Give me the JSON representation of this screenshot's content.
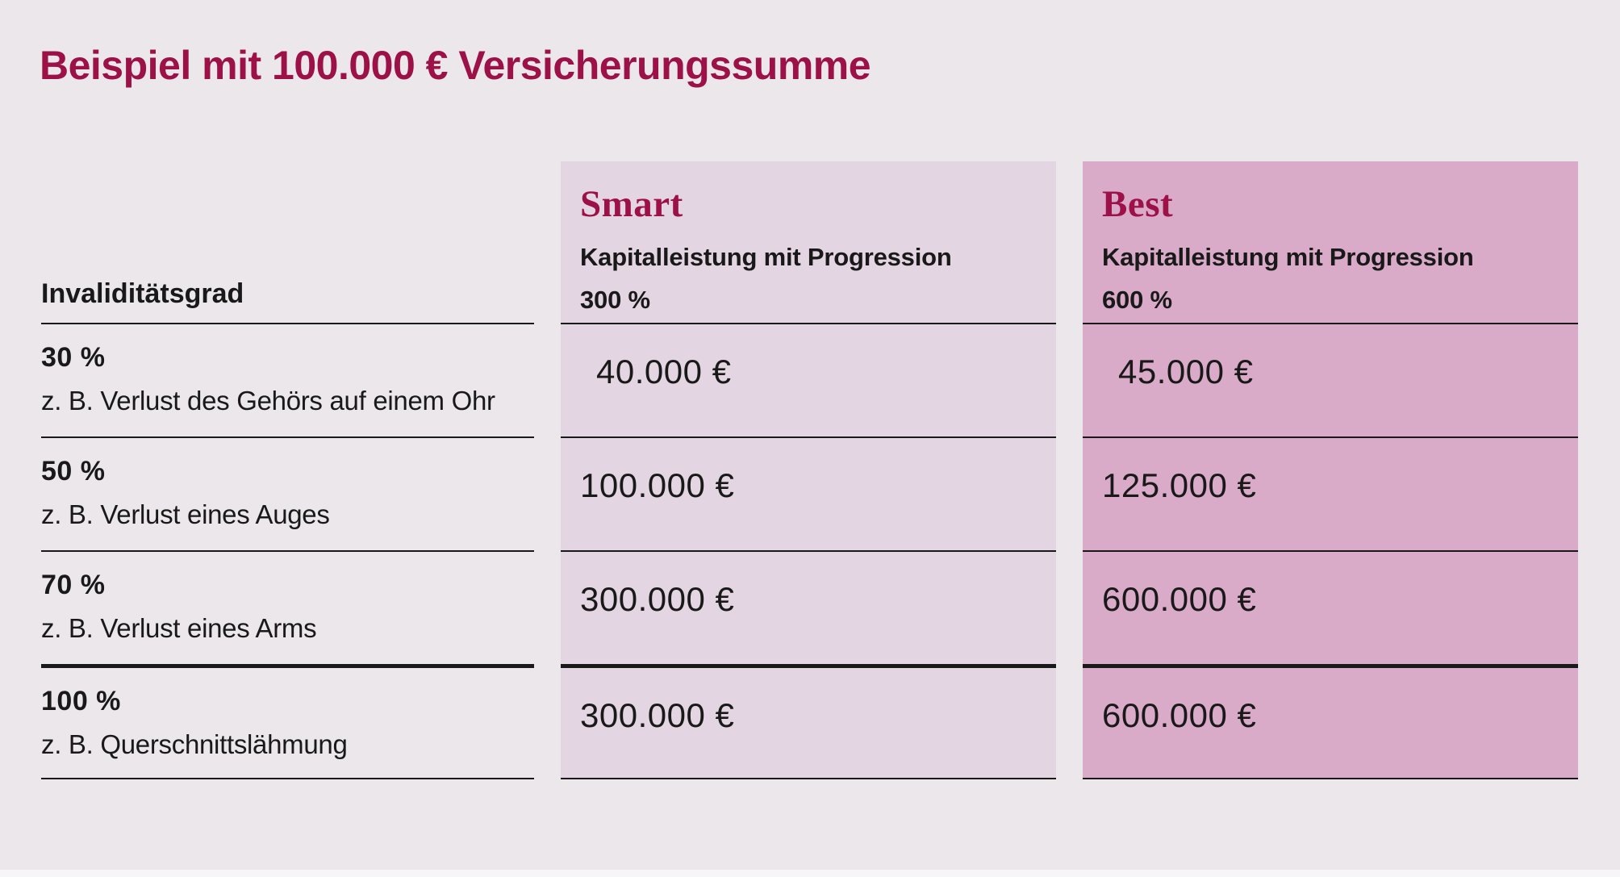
{
  "title": "Beispiel mit 100.000 € Versicherungssumme",
  "colors": {
    "accent_maroon": "#9B1148",
    "page_background": "#ECE7EA",
    "smart_column_background": "#E4D5E2",
    "best_column_background": "#D9ABC9",
    "line": "#191919",
    "text": "#191919"
  },
  "table": {
    "row_header_label": "Invaliditätsgrad",
    "products": [
      {
        "name": "Smart",
        "subtitle": "Kapitalleistung mit Progression",
        "progression": "300 %"
      },
      {
        "name": "Best",
        "subtitle": "Kapitalleistung mit Progression",
        "progression": "600 %"
      }
    ],
    "rows": [
      {
        "grade": "30 %",
        "example": "z. B. Verlust des Gehörs auf einem Ohr",
        "smart": "40.000 €",
        "best": "45.000 €"
      },
      {
        "grade": "50 %",
        "example": "z. B. Verlust eines Auges",
        "smart": "100.000 €",
        "best": "125.000 €"
      },
      {
        "grade": "70 %",
        "example": "z. B. Verlust eines Arms",
        "smart": "300.000 €",
        "best": "600.000 €"
      },
      {
        "grade": "100 %",
        "example": "z. B. Querschnittslähmung",
        "smart": "300.000 €",
        "best": "600.000 €"
      }
    ]
  },
  "chart_data": {
    "type": "table",
    "title": "Beispiel mit 100.000 € Versicherungssumme",
    "columns": [
      "Invaliditätsgrad",
      "Smart — Kapitalleistung mit Progression 300 %",
      "Best — Kapitalleistung mit Progression 600 %"
    ],
    "rows": [
      [
        "30 % (z. B. Verlust des Gehörs auf einem Ohr)",
        "40.000 €",
        "45.000 €"
      ],
      [
        "50 % (z. B. Verlust eines Auges)",
        "100.000 €",
        "125.000 €"
      ],
      [
        "70 % (z. B. Verlust eines Arms)",
        "300.000 €",
        "600.000 €"
      ],
      [
        "100 % (z. B. Querschnittslähmung)",
        "300.000 €",
        "600.000 €"
      ]
    ],
    "notes": "Versicherungssumme 100.000 €; thick rule above the 100 % row; grid lines horizontal only"
  }
}
